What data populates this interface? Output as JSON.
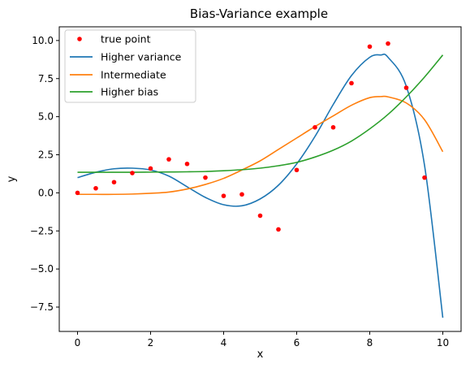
{
  "chart_data": {
    "type": "scatter+line",
    "title": "Bias-Variance example",
    "xlabel": "x",
    "ylabel": "y",
    "xlim": [
      -0.5,
      10.5
    ],
    "ylim": [
      -9.1,
      10.9
    ],
    "xticks": [
      "0",
      "2",
      "4",
      "6",
      "8",
      "10"
    ],
    "xtick_values": [
      0,
      2,
      4,
      6,
      8,
      10
    ],
    "yticks": [
      "10.0",
      "7.5",
      "5.0",
      "2.5",
      "0.0",
      "−2.5",
      "−5.0",
      "−7.5"
    ],
    "ytick_values": [
      10,
      7.5,
      5,
      2.5,
      0,
      -2.5,
      -5,
      -7.5
    ],
    "grid": false,
    "legend_position": "top-left",
    "points": {
      "name": "true point",
      "color": "#ff0000",
      "x": [
        0,
        0.5,
        1,
        1.5,
        2,
        2.5,
        3,
        3.5,
        4,
        4.5,
        5,
        5.5,
        6,
        6.5,
        7,
        7.5,
        8,
        8.5,
        9,
        9.5
      ],
      "y": [
        0.0,
        0.3,
        0.7,
        1.3,
        1.6,
        2.2,
        1.9,
        1.0,
        -0.2,
        -0.1,
        -1.5,
        -2.4,
        1.5,
        4.3,
        4.3,
        7.2,
        9.6,
        9.8,
        6.9,
        1.0
      ]
    },
    "series": [
      {
        "name": "Higher variance",
        "color": "#1f77b4",
        "x": [
          0,
          0.5,
          1,
          1.5,
          2,
          2.5,
          3,
          3.5,
          4,
          4.5,
          5,
          5.5,
          6,
          6.5,
          7,
          7.5,
          8,
          8.3,
          8.5,
          9,
          9.5,
          10
        ],
        "y": [
          1.0,
          1.35,
          1.58,
          1.62,
          1.5,
          1.1,
          0.4,
          -0.3,
          -0.78,
          -0.85,
          -0.4,
          0.5,
          1.9,
          3.7,
          5.8,
          7.7,
          8.9,
          9.05,
          8.9,
          7.0,
          1.8,
          -8.2
        ]
      },
      {
        "name": "Intermediate",
        "color": "#ff7f0e",
        "x": [
          0,
          0.5,
          1,
          1.5,
          2,
          2.5,
          3,
          3.5,
          4,
          4.5,
          5,
          5.5,
          6,
          6.5,
          7,
          7.5,
          8,
          8.3,
          8.5,
          9,
          9.5,
          10
        ],
        "y": [
          -0.1,
          -0.1,
          -0.1,
          -0.08,
          -0.03,
          0.05,
          0.25,
          0.55,
          0.95,
          1.5,
          2.1,
          2.85,
          3.6,
          4.35,
          5.05,
          5.75,
          6.25,
          6.32,
          6.3,
          5.9,
          4.8,
          2.7
        ]
      },
      {
        "name": "Higher bias",
        "color": "#2ca02c",
        "x": [
          0,
          0.5,
          1,
          1.5,
          2,
          2.5,
          3,
          3.5,
          4,
          4.5,
          5,
          5.5,
          6,
          6.5,
          7,
          7.5,
          8,
          8.5,
          9,
          9.5,
          10
        ],
        "y": [
          1.35,
          1.35,
          1.35,
          1.35,
          1.36,
          1.37,
          1.38,
          1.4,
          1.45,
          1.52,
          1.62,
          1.78,
          2.0,
          2.35,
          2.8,
          3.4,
          4.2,
          5.15,
          6.3,
          7.6,
          9.05
        ]
      }
    ]
  }
}
